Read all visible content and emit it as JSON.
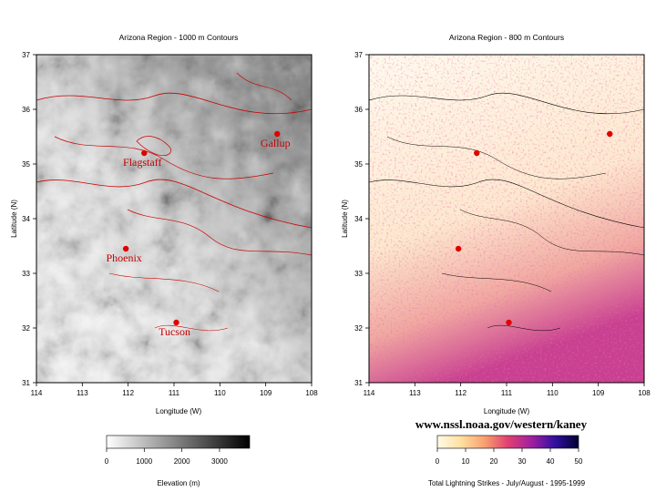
{
  "chart_data": [
    {
      "type": "heatmap",
      "title": "Arizona Region - 1000 m Contours",
      "xlabel": "Longitude (W)",
      "ylabel": "Latitude (N)",
      "xlim": [
        114,
        108
      ],
      "ylim": [
        31,
        37
      ],
      "x_ticks": [
        "114",
        "113",
        "112",
        "111",
        "110",
        "109",
        "108"
      ],
      "y_ticks": [
        "31",
        "32",
        "33",
        "34",
        "35",
        "36",
        "37"
      ],
      "cities": [
        {
          "name": "Flagstaff",
          "lon": 111.65,
          "lat": 35.2
        },
        {
          "name": "Gallup",
          "lon": 108.75,
          "lat": 35.55
        },
        {
          "name": "Phoenix",
          "lon": 112.05,
          "lat": 33.45
        },
        {
          "name": "Tucson",
          "lon": 110.95,
          "lat": 32.1
        }
      ],
      "colorbar": {
        "label": "Elevation (m)",
        "ticks": [
          "0",
          "1000",
          "2000",
          "3000"
        ],
        "range": [
          0,
          3800
        ],
        "colors": [
          "#ffffff",
          "#000000"
        ]
      },
      "contour_color": "#cc0000"
    },
    {
      "type": "heatmap",
      "title": "Arizona Region - 800 m Contours",
      "xlabel": "Longitude (W)",
      "ylabel": "Latitude (N)",
      "xlim": [
        114,
        108
      ],
      "ylim": [
        31,
        37
      ],
      "x_ticks": [
        "114",
        "113",
        "112",
        "111",
        "110",
        "109",
        "108"
      ],
      "y_ticks": [
        "31",
        "32",
        "33",
        "34",
        "35",
        "36",
        "37"
      ],
      "colorbar": {
        "label": "Total Lightning Strikes - July/August - 1995-1999",
        "ticks": [
          "0",
          "10",
          "20",
          "30",
          "40",
          "50"
        ],
        "range": [
          0,
          50
        ],
        "colors": [
          "#fffbe6",
          "#ffe0a0",
          "#f8a070",
          "#e04070",
          "#a020a0",
          "#3010a0",
          "#000030"
        ]
      },
      "contour_color": "#000000"
    }
  ],
  "credit": "www.nssl.noaa.gov/western/kaney",
  "marker_color": "#e00000"
}
